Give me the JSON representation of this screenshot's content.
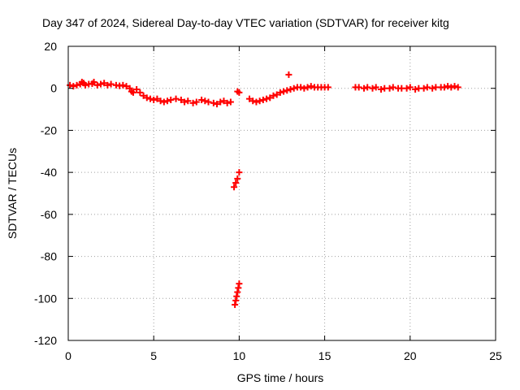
{
  "chart_data": {
    "type": "scatter",
    "title": "Day 347 of 2024, Sidereal Day-to-day VTEC variation (SDTVAR) for receiver kitg",
    "xlabel": "GPS time / hours",
    "ylabel": "SDTVAR / TECUs",
    "xlim": [
      0,
      25
    ],
    "ylim": [
      -120,
      20
    ],
    "x_ticks": [
      "0",
      "5",
      "10",
      "15",
      "20",
      "25"
    ],
    "y_ticks": [
      "20",
      "0",
      "-20",
      "-40",
      "-60",
      "-80",
      "-100",
      "-120"
    ],
    "grid": true,
    "marker": "plus",
    "colors": {
      "series": "#ff0000",
      "grid": "#a0a0a0",
      "axes": "#000000"
    },
    "points": [
      [
        0.1,
        1.5
      ],
      [
        0.3,
        1.0
      ],
      [
        0.5,
        1.5
      ],
      [
        0.7,
        2.0
      ],
      [
        0.8,
        3.0
      ],
      [
        0.9,
        2.5
      ],
      [
        1.0,
        1.5
      ],
      [
        1.2,
        2.0
      ],
      [
        1.4,
        2.2
      ],
      [
        1.5,
        3.0
      ],
      [
        1.7,
        1.5
      ],
      [
        1.9,
        2.0
      ],
      [
        2.1,
        2.5
      ],
      [
        2.3,
        1.5
      ],
      [
        2.5,
        2.0
      ],
      [
        2.8,
        1.5
      ],
      [
        3.0,
        1.2
      ],
      [
        3.2,
        1.5
      ],
      [
        3.4,
        1.0
      ],
      [
        3.6,
        0.0
      ],
      [
        3.7,
        -1.5
      ],
      [
        3.8,
        -2.0
      ],
      [
        4.0,
        -0.5
      ],
      [
        4.2,
        -2.0
      ],
      [
        4.4,
        -3.5
      ],
      [
        4.6,
        -4.5
      ],
      [
        4.8,
        -5.0
      ],
      [
        5.0,
        -5.5
      ],
      [
        5.2,
        -5.0
      ],
      [
        5.4,
        -6.0
      ],
      [
        5.6,
        -6.5
      ],
      [
        5.8,
        -6.0
      ],
      [
        6.0,
        -5.5
      ],
      [
        6.3,
        -5.0
      ],
      [
        6.6,
        -5.5
      ],
      [
        6.8,
        -6.5
      ],
      [
        7.0,
        -6.0
      ],
      [
        7.3,
        -7.0
      ],
      [
        7.5,
        -6.5
      ],
      [
        7.8,
        -5.5
      ],
      [
        8.0,
        -6.0
      ],
      [
        8.2,
        -6.5
      ],
      [
        8.5,
        -7.0
      ],
      [
        8.7,
        -7.5
      ],
      [
        8.9,
        -6.5
      ],
      [
        9.1,
        -6.0
      ],
      [
        9.3,
        -7.0
      ],
      [
        9.5,
        -6.5
      ],
      [
        9.7,
        -47.0
      ],
      [
        9.8,
        -45.0
      ],
      [
        9.9,
        -43.0
      ],
      [
        10.0,
        -40.0
      ],
      [
        9.75,
        -103.0
      ],
      [
        9.8,
        -101.0
      ],
      [
        9.85,
        -99.0
      ],
      [
        9.9,
        -97.0
      ],
      [
        9.95,
        -95.0
      ],
      [
        10.0,
        -93.0
      ],
      [
        9.9,
        -1.5
      ],
      [
        10.0,
        -2.0
      ],
      [
        10.6,
        -5.0
      ],
      [
        10.8,
        -6.0
      ],
      [
        11.0,
        -6.5
      ],
      [
        11.2,
        -6.0
      ],
      [
        11.4,
        -5.5
      ],
      [
        11.6,
        -5.0
      ],
      [
        11.8,
        -4.5
      ],
      [
        12.0,
        -3.5
      ],
      [
        12.2,
        -3.0
      ],
      [
        12.4,
        -2.0
      ],
      [
        12.6,
        -1.5
      ],
      [
        12.8,
        -1.0
      ],
      [
        12.9,
        6.5
      ],
      [
        13.0,
        -0.5
      ],
      [
        13.2,
        0.0
      ],
      [
        13.4,
        0.5
      ],
      [
        13.6,
        0.5
      ],
      [
        13.8,
        0.0
      ],
      [
        14.0,
        0.5
      ],
      [
        14.2,
        1.0
      ],
      [
        14.4,
        0.5
      ],
      [
        14.6,
        0.5
      ],
      [
        14.8,
        0.5
      ],
      [
        15.0,
        0.5
      ],
      [
        15.2,
        0.5
      ],
      [
        16.8,
        0.5
      ],
      [
        17.0,
        0.5
      ],
      [
        17.3,
        0.0
      ],
      [
        17.5,
        0.5
      ],
      [
        17.8,
        0.0
      ],
      [
        18.0,
        0.5
      ],
      [
        18.3,
        -0.5
      ],
      [
        18.5,
        0.0
      ],
      [
        18.8,
        0.0
      ],
      [
        19.0,
        0.5
      ],
      [
        19.3,
        0.0
      ],
      [
        19.5,
        0.0
      ],
      [
        19.8,
        0.0
      ],
      [
        20.0,
        0.5
      ],
      [
        20.3,
        -0.5
      ],
      [
        20.5,
        0.0
      ],
      [
        20.8,
        0.0
      ],
      [
        21.0,
        0.5
      ],
      [
        21.3,
        0.0
      ],
      [
        21.5,
        0.5
      ],
      [
        21.8,
        0.5
      ],
      [
        22.0,
        0.5
      ],
      [
        22.2,
        1.0
      ],
      [
        22.4,
        0.5
      ],
      [
        22.6,
        1.0
      ],
      [
        22.8,
        0.5
      ]
    ]
  }
}
